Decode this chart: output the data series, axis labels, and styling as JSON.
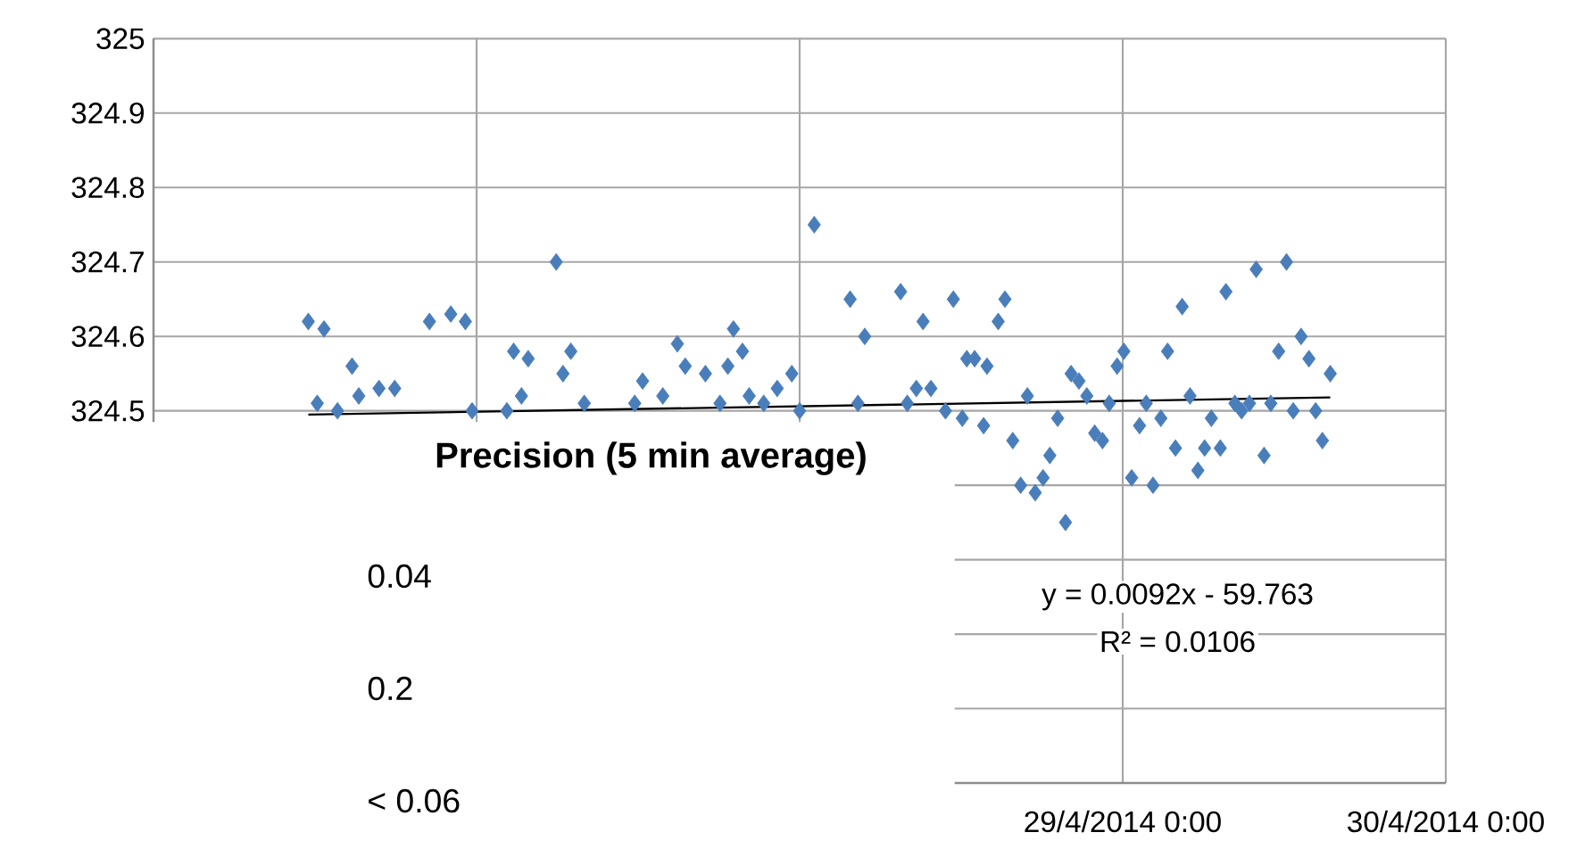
{
  "chart_data": {
    "type": "scatter",
    "marker": "diamond",
    "grid": true,
    "xlim": [
      "2014-04-26T00:00",
      "2014-04-30T00:00"
    ],
    "xticks": [
      {
        "value": "2014-04-26T00:00",
        "label": null
      },
      {
        "value": "2014-04-27T00:00",
        "label": null
      },
      {
        "value": "2014-04-28T00:00",
        "label": null
      },
      {
        "value": "2014-04-29T00:00",
        "label": "29/4/2014 0:00"
      },
      {
        "value": "2014-04-30T00:00",
        "label": "30/4/2014 0:00"
      }
    ],
    "ylim": [
      324.0,
      325.0
    ],
    "yticks": [
      {
        "value": 324.0,
        "label": null
      },
      {
        "value": 324.1,
        "label": null
      },
      {
        "value": 324.2,
        "label": null
      },
      {
        "value": 324.3,
        "label": null
      },
      {
        "value": 324.4,
        "label": null
      },
      324.5,
      324.6,
      324.7,
      324.8,
      324.9,
      325
    ],
    "annotations": [
      "Precision (5 min average)",
      "0.04",
      "0.2",
      "< 0.06",
      "y = 0.0092x - 59.763",
      "R² = 0.0106"
    ],
    "series": [
      {
        "type": "scatter",
        "color": "#4a7ebb",
        "x": [
          "2014-04-26T11:30",
          "2014-04-26T12:10",
          "2014-04-26T12:40",
          "2014-04-26T13:40",
          "2014-04-26T14:45",
          "2014-04-26T15:15",
          "2014-04-26T16:45",
          "2014-04-26T17:55",
          "2014-04-26T20:30",
          "2014-04-26T22:05",
          "2014-04-26T23:10",
          "2014-04-26T23:40",
          "2014-04-27T02:15",
          "2014-04-27T02:45",
          "2014-04-27T03:20",
          "2014-04-27T03:50",
          "2014-04-27T05:55",
          "2014-04-27T06:25",
          "2014-04-27T07:00",
          "2014-04-27T08:00",
          "2014-04-27T11:45",
          "2014-04-27T12:20",
          "2014-04-27T13:50",
          "2014-04-27T14:55",
          "2014-04-27T15:30",
          "2014-04-27T17:00",
          "2014-04-27T18:05",
          "2014-04-27T18:40",
          "2014-04-27T19:05",
          "2014-04-27T19:45",
          "2014-04-27T20:15",
          "2014-04-27T21:20",
          "2014-04-27T22:20",
          "2014-04-27T23:25",
          "2014-04-28T00:00",
          "2014-04-28T01:05",
          "2014-04-28T03:45",
          "2014-04-28T04:20",
          "2014-04-28T04:50",
          "2014-04-28T07:30",
          "2014-04-28T08:00",
          "2014-04-28T08:40",
          "2014-04-28T09:10",
          "2014-04-28T09:45",
          "2014-04-28T10:50",
          "2014-04-28T11:25",
          "2014-04-28T12:05",
          "2014-04-28T12:25",
          "2014-04-28T13:00",
          "2014-04-28T13:40",
          "2014-04-28T13:55",
          "2014-04-28T14:45",
          "2014-04-28T15:15",
          "2014-04-28T15:50",
          "2014-04-28T16:25",
          "2014-04-28T16:55",
          "2014-04-28T17:30",
          "2014-04-28T18:05",
          "2014-04-28T18:35",
          "2014-04-28T19:10",
          "2014-04-28T19:45",
          "2014-04-28T20:10",
          "2014-04-28T20:45",
          "2014-04-28T21:20",
          "2014-04-28T21:55",
          "2014-04-28T22:30",
          "2014-04-28T23:00",
          "2014-04-28T23:35",
          "2014-04-29T00:05",
          "2014-04-29T00:40",
          "2014-04-29T01:15",
          "2014-04-29T01:45",
          "2014-04-29T02:15",
          "2014-04-29T02:50",
          "2014-04-29T03:20",
          "2014-04-29T03:55",
          "2014-04-29T04:25",
          "2014-04-29T05:00",
          "2014-04-29T05:35",
          "2014-04-29T06:05",
          "2014-04-29T06:35",
          "2014-04-29T07:15",
          "2014-04-29T07:40",
          "2014-04-29T08:20",
          "2014-04-29T08:50",
          "2014-04-29T09:25",
          "2014-04-29T09:55",
          "2014-04-29T10:30",
          "2014-04-29T11:00",
          "2014-04-29T11:35",
          "2014-04-29T12:10",
          "2014-04-29T12:40",
          "2014-04-29T13:15",
          "2014-04-29T13:50",
          "2014-04-29T14:20",
          "2014-04-29T14:50",
          "2014-04-29T15:25"
        ],
        "values": [
          324.62,
          324.51,
          324.61,
          324.5,
          324.56,
          324.52,
          324.53,
          324.53,
          324.62,
          324.63,
          324.62,
          324.5,
          324.5,
          324.58,
          324.52,
          324.57,
          324.7,
          324.55,
          324.58,
          324.51,
          324.51,
          324.54,
          324.52,
          324.59,
          324.56,
          324.55,
          324.51,
          324.56,
          324.61,
          324.58,
          324.52,
          324.51,
          324.53,
          324.55,
          324.5,
          324.75,
          324.65,
          324.51,
          324.6,
          324.66,
          324.51,
          324.53,
          324.62,
          324.53,
          324.5,
          324.65,
          324.49,
          324.57,
          324.57,
          324.48,
          324.56,
          324.62,
          324.65,
          324.46,
          324.4,
          324.52,
          324.39,
          324.41,
          324.44,
          324.49,
          324.35,
          324.55,
          324.54,
          324.52,
          324.47,
          324.46,
          324.51,
          324.56,
          324.58,
          324.41,
          324.48,
          324.51,
          324.4,
          324.49,
          324.58,
          324.45,
          324.64,
          324.52,
          324.42,
          324.45,
          324.49,
          324.45,
          324.66,
          324.51,
          324.5,
          324.51,
          324.69,
          324.44,
          324.51,
          324.58,
          324.7,
          324.5,
          324.6,
          324.57,
          324.5,
          324.46,
          324.55
        ]
      },
      {
        "type": "line",
        "color": "#000000",
        "marker": "none",
        "x": [
          "2014-04-26T11:30",
          "2014-04-29T15:25"
        ],
        "values": [
          324.495,
          324.518
        ]
      }
    ]
  }
}
